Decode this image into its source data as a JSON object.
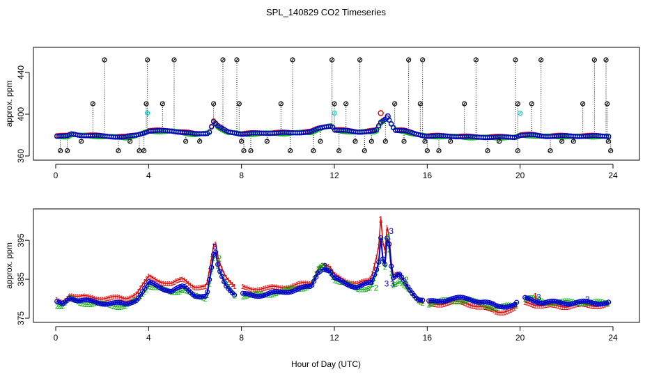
{
  "chart_data": [
    {
      "panel": "top",
      "type": "scatter",
      "title": "SPL_140829  CO2 Timeseries",
      "xlabel": "",
      "ylabel": "approx. ppm",
      "xlim": [
        0,
        24
      ],
      "ylim": [
        360,
        460
      ],
      "xticks": [
        0,
        4,
        8,
        12,
        16,
        20,
        24
      ],
      "yticks": [
        360,
        400,
        440
      ],
      "baseline": [
        [
          0,
          379
        ],
        [
          0.5,
          379
        ],
        [
          0.7,
          381
        ],
        [
          1.0,
          380
        ],
        [
          2.0,
          379
        ],
        [
          3.0,
          378
        ],
        [
          3.5,
          380
        ],
        [
          3.9,
          383
        ],
        [
          4.0,
          384
        ],
        [
          5.0,
          384
        ],
        [
          6.0,
          381
        ],
        [
          6.6,
          382
        ],
        [
          6.8,
          393
        ],
        [
          7.0,
          388
        ],
        [
          7.4,
          383
        ],
        [
          7.8,
          382
        ],
        [
          8.0,
          381
        ],
        [
          9.0,
          382
        ],
        [
          10.0,
          382
        ],
        [
          11.0,
          383
        ],
        [
          11.3,
          386
        ],
        [
          11.6,
          388
        ],
        [
          11.9,
          389
        ],
        [
          12.0,
          385
        ],
        [
          13.0,
          383
        ],
        [
          13.8,
          384
        ],
        [
          14.0,
          392
        ],
        [
          14.3,
          397
        ],
        [
          14.6,
          385
        ],
        [
          15.0,
          384
        ],
        [
          15.5,
          381
        ],
        [
          16.0,
          379
        ],
        [
          17.0,
          379
        ],
        [
          18.0,
          378
        ],
        [
          19.0,
          378
        ],
        [
          19.8,
          378
        ],
        [
          20.0,
          380
        ],
        [
          20.5,
          380
        ],
        [
          21.0,
          379
        ],
        [
          22.0,
          379
        ],
        [
          23.0,
          379
        ],
        [
          23.8,
          379
        ]
      ],
      "series": [
        {
          "name": "1",
          "color": "#dd0000",
          "offset": 0.4,
          "extra": [
            [
              14.0,
              401
            ]
          ]
        },
        {
          "name": "2",
          "color": "#00aa00",
          "offset": -0.4,
          "extra": []
        },
        {
          "name": "3",
          "color": "#0000cc",
          "offset": 0,
          "extra": [
            [
              14.3,
              398
            ]
          ]
        }
      ],
      "spikes_black": [
        [
          0.2,
          365
        ],
        [
          0.5,
          365
        ],
        [
          1.1,
          374
        ],
        [
          1.6,
          410
        ],
        [
          2.1,
          452
        ],
        [
          2.7,
          365
        ],
        [
          3.2,
          374
        ],
        [
          3.6,
          365
        ],
        [
          3.8,
          365
        ],
        [
          3.9,
          410
        ],
        [
          3.95,
          452
        ],
        [
          4.6,
          410
        ],
        [
          5.1,
          452
        ],
        [
          5.6,
          374
        ],
        [
          6.2,
          374
        ],
        [
          6.8,
          410
        ],
        [
          7.2,
          452
        ],
        [
          7.8,
          452
        ],
        [
          7.9,
          410
        ],
        [
          8.0,
          374
        ],
        [
          8.1,
          365
        ],
        [
          8.4,
          365
        ],
        [
          9.1,
          374
        ],
        [
          9.7,
          410
        ],
        [
          10.1,
          365
        ],
        [
          10.2,
          452
        ],
        [
          11.1,
          365
        ],
        [
          11.4,
          374
        ],
        [
          11.9,
          452
        ],
        [
          12.0,
          410
        ],
        [
          12.2,
          365
        ],
        [
          12.5,
          410
        ],
        [
          12.9,
          374
        ],
        [
          13.1,
          452
        ],
        [
          13.3,
          365
        ],
        [
          13.6,
          374
        ],
        [
          14.2,
          374
        ],
        [
          14.6,
          410
        ],
        [
          15.0,
          374
        ],
        [
          15.2,
          452
        ],
        [
          15.7,
          410
        ],
        [
          15.8,
          452
        ],
        [
          15.9,
          374
        ],
        [
          16.0,
          365
        ],
        [
          16.5,
          365
        ],
        [
          17.0,
          374
        ],
        [
          17.6,
          410
        ],
        [
          18.1,
          452
        ],
        [
          18.6,
          365
        ],
        [
          19.1,
          374
        ],
        [
          19.8,
          452
        ],
        [
          19.9,
          410
        ],
        [
          19.9,
          365
        ],
        [
          20.5,
          410
        ],
        [
          20.9,
          452
        ],
        [
          21.3,
          365
        ],
        [
          21.8,
          374
        ],
        [
          22.3,
          374
        ],
        [
          22.7,
          410
        ],
        [
          23.2,
          452
        ],
        [
          23.7,
          452
        ],
        [
          23.75,
          410
        ],
        [
          23.8,
          374
        ],
        [
          23.9,
          365
        ]
      ],
      "spikes_cyan": [
        [
          3.95,
          401
        ],
        [
          12.0,
          401
        ],
        [
          20.0,
          401
        ]
      ]
    },
    {
      "panel": "bottom",
      "type": "line",
      "title": "",
      "xlabel": "Hour of Day (UTC)",
      "ylabel": "approx. ppm",
      "xlim": [
        0,
        24
      ],
      "ylim": [
        375,
        402
      ],
      "xticks": [
        0,
        4,
        8,
        12,
        16,
        20,
        24
      ],
      "yticks": [
        375,
        385,
        395
      ],
      "baseline": [
        [
          0,
          379
        ],
        [
          0.3,
          378.5
        ],
        [
          0.6,
          380.5
        ],
        [
          1.0,
          379.5
        ],
        [
          2.0,
          379
        ],
        [
          3.0,
          378.5
        ],
        [
          3.5,
          380
        ],
        [
          3.9,
          383
        ],
        [
          4.0,
          384
        ],
        [
          4.5,
          383
        ],
        [
          5.0,
          382
        ],
        [
          5.5,
          383
        ],
        [
          6.0,
          381
        ],
        [
          6.5,
          380.5
        ],
        [
          6.75,
          389
        ],
        [
          6.85,
          393
        ],
        [
          7.0,
          388
        ],
        [
          7.3,
          384
        ],
        [
          7.7,
          381
        ],
        [
          8.0,
          381
        ],
        [
          9.0,
          381
        ],
        [
          10.0,
          382
        ],
        [
          11.0,
          383
        ],
        [
          11.3,
          387
        ],
        [
          11.5,
          388
        ],
        [
          11.8,
          387
        ],
        [
          12.0,
          385
        ],
        [
          13.0,
          383
        ],
        [
          13.6,
          384
        ],
        [
          13.9,
          389
        ],
        [
          14.0,
          396
        ],
        [
          14.15,
          387
        ],
        [
          14.3,
          398
        ],
        [
          14.5,
          385
        ],
        [
          14.8,
          386
        ],
        [
          15.2,
          383
        ],
        [
          15.6,
          380
        ],
        [
          16.0,
          379
        ],
        [
          17.0,
          380
        ],
        [
          17.8,
          380
        ],
        [
          18.5,
          379
        ],
        [
          19.0,
          378
        ],
        [
          19.8,
          378.5
        ],
        [
          20.0,
          380
        ],
        [
          20.4,
          380
        ],
        [
          21.0,
          379
        ],
        [
          22.0,
          379
        ],
        [
          23.0,
          379
        ],
        [
          23.8,
          379
        ]
      ],
      "series": [
        {
          "name": "1",
          "color": "#dd0000",
          "line_width": 1.5,
          "marker": "1",
          "deltas": [
            [
              0,
              0.6
            ],
            [
              3,
              1.6
            ],
            [
              4.5,
              1.6
            ],
            [
              6.7,
              2.5
            ],
            [
              8.2,
              1.8
            ],
            [
              11.0,
              1.0
            ],
            [
              13.5,
              0.8
            ],
            [
              14.0,
              5
            ],
            [
              14.5,
              0.5
            ],
            [
              16.0,
              -0.5
            ],
            [
              18.6,
              -1.5
            ],
            [
              20.0,
              -1.0
            ],
            [
              24,
              -0.5
            ]
          ]
        },
        {
          "name": "2",
          "color": "#00aa00",
          "line_width": 1,
          "marker": "2",
          "deltas": [
            [
              0,
              -0.4
            ],
            [
              6.0,
              -0.4
            ],
            [
              11.5,
              0.5
            ],
            [
              13.8,
              -1.0
            ],
            [
              14.4,
              -1.5
            ],
            [
              16.0,
              -0.2
            ],
            [
              18.6,
              -0.5
            ],
            [
              20.5,
              0.3
            ],
            [
              24,
              0
            ]
          ]
        },
        {
          "name": "3",
          "color": "#0000cc",
          "line_width": 2,
          "marker": "o",
          "deltas": [
            [
              0,
              0
            ],
            [
              24,
              0
            ]
          ]
        }
      ],
      "digit_labels": [
        {
          "x": 6.85,
          "y": 393.5,
          "text": "3",
          "color": "#0000cc"
        },
        {
          "x": 7.05,
          "y": 390.5,
          "text": "2",
          "color": "#00aa00"
        },
        {
          "x": 7.0,
          "y": 389,
          "text": "1",
          "color": "#dd0000"
        },
        {
          "x": 11.4,
          "y": 388,
          "text": "2",
          "color": "#00aa00"
        },
        {
          "x": 11.6,
          "y": 388.5,
          "text": "3",
          "color": "#0000cc"
        },
        {
          "x": 13.6,
          "y": 384.5,
          "text": "3",
          "color": "#0000cc"
        },
        {
          "x": 13.8,
          "y": 383,
          "text": "2",
          "color": "#00aa00"
        },
        {
          "x": 14.0,
          "y": 400.5,
          "text": "1",
          "color": "#dd0000"
        },
        {
          "x": 14.45,
          "y": 397.5,
          "text": "3",
          "color": "#0000cc"
        },
        {
          "x": 14.3,
          "y": 396,
          "text": "2",
          "color": "#00aa00"
        },
        {
          "x": 14.25,
          "y": 384,
          "text": "3",
          "color": "#0000cc"
        },
        {
          "x": 14.5,
          "y": 384,
          "text": "3",
          "color": "#0000cc"
        },
        {
          "x": 14.8,
          "y": 386,
          "text": "3",
          "color": "#0000cc"
        },
        {
          "x": 15.1,
          "y": 385,
          "text": "2",
          "color": "#00aa00"
        },
        {
          "x": 20.65,
          "y": 380.8,
          "text": "1",
          "color": "#dd0000"
        },
        {
          "x": 20.8,
          "y": 380.5,
          "text": "3",
          "color": "#0000cc"
        },
        {
          "x": 22.9,
          "y": 380,
          "text": "3",
          "color": "#0000cc"
        }
      ]
    }
  ]
}
